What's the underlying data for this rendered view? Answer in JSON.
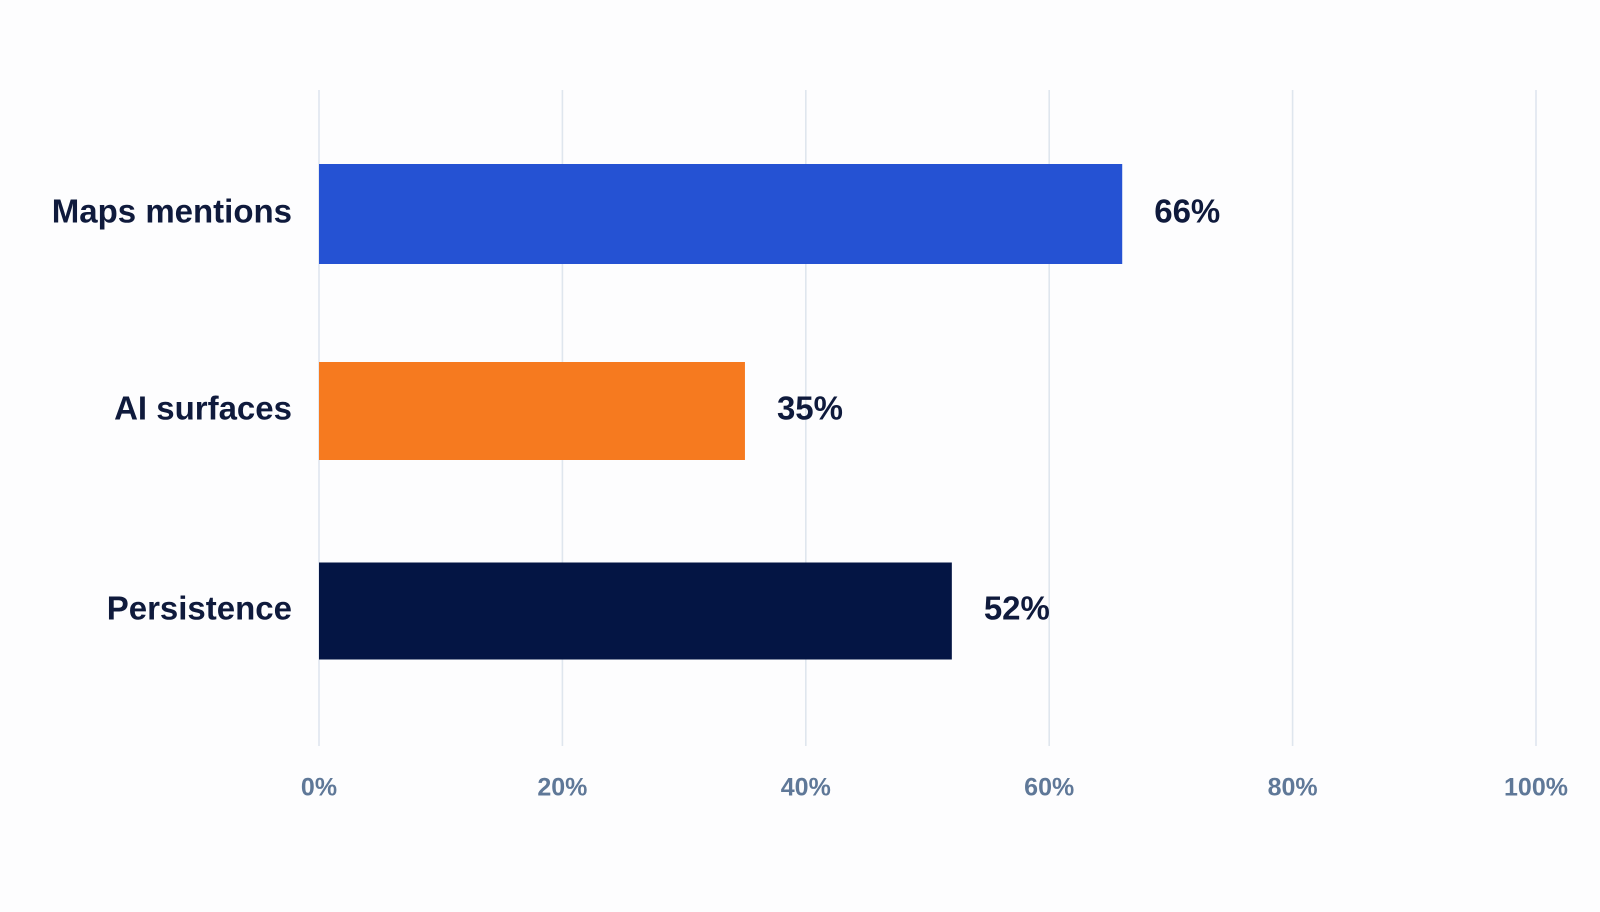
{
  "chart_data": {
    "type": "bar",
    "orientation": "horizontal",
    "categories": [
      "Maps mentions",
      "AI surfaces",
      "Persistence"
    ],
    "values": [
      66,
      35,
      52
    ],
    "value_labels": [
      "66%",
      "35%",
      "52%"
    ],
    "colors": [
      "#2552d3",
      "#f67a1f",
      "#041544"
    ],
    "xlim": [
      0,
      100
    ],
    "xticks": [
      0,
      20,
      40,
      60,
      80,
      100
    ],
    "xtick_labels": [
      "0%",
      "20%",
      "40%",
      "60%",
      "80%",
      "100%"
    ],
    "grid": true,
    "title": "",
    "xlabel": "",
    "ylabel": ""
  }
}
